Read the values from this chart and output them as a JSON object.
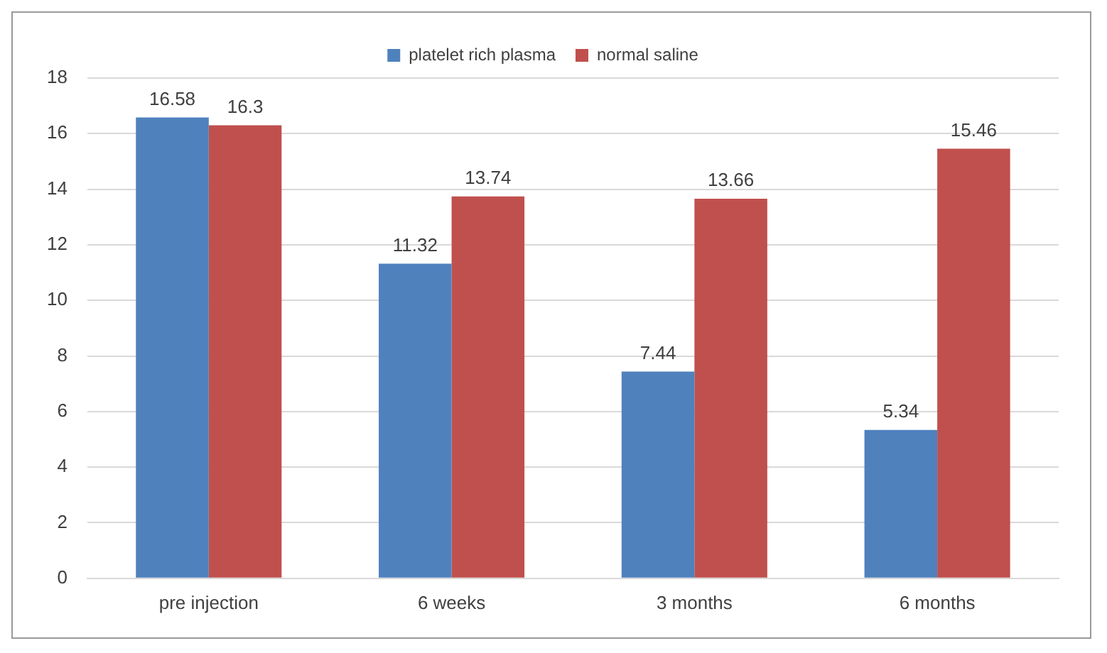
{
  "chart_data": {
    "type": "bar",
    "categories": [
      "pre injection",
      "6 weeks",
      "3 months",
      "6 months"
    ],
    "series": [
      {
        "name": "platelet rich plasma",
        "color": "#4f81bd",
        "values": [
          16.58,
          11.32,
          7.44,
          5.34
        ]
      },
      {
        "name": "normal saline",
        "color": "#c0504d",
        "values": [
          16.3,
          13.74,
          13.66,
          15.46
        ]
      }
    ],
    "ylim": [
      0,
      18
    ],
    "yticks": [
      0,
      2,
      4,
      6,
      8,
      10,
      12,
      14,
      16,
      18
    ],
    "grid": "y",
    "legend": "top",
    "data_labels": true
  }
}
